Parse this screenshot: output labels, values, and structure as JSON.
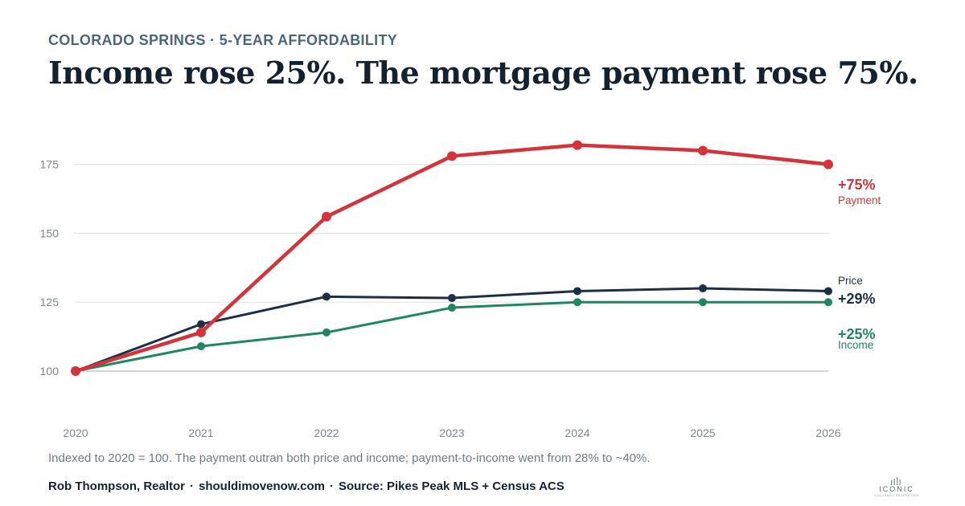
{
  "eyebrow": "COLORADO SPRINGS · 5-YEAR AFFORDABILITY",
  "headline": "Income rose 25%. The mortgage payment rose 75%.",
  "footnote": "Indexed to 2020 = 100. The payment outran both price and income; payment-to-income went from 28% to ~40%.",
  "footer": {
    "author": "Rob Thompson, Realtor",
    "site": "shouldimovenow.com",
    "source": "Source: Pikes Peak MLS + Census ACS"
  },
  "logo": {
    "word": "ICONIC",
    "tagline": "COLORADO PROPERTIES"
  },
  "chart_data": {
    "type": "line",
    "x": [
      2020,
      2021,
      2022,
      2023,
      2024,
      2025,
      2026
    ],
    "yticks": [
      100,
      125,
      150,
      175
    ],
    "ylim": [
      93,
      188
    ],
    "grid": "horizontal",
    "series": [
      {
        "name": "Income",
        "end_label": "+25%",
        "color": "#1e8660",
        "values": [
          100,
          109,
          114,
          123,
          125,
          125,
          125
        ]
      },
      {
        "name": "Price",
        "end_label": "+29%",
        "color": "#1c2f44",
        "values": [
          100,
          117,
          127,
          126.5,
          129,
          130,
          129
        ]
      },
      {
        "name": "Payment",
        "end_label": "+75%",
        "color": "#d1343a",
        "values": [
          100,
          114,
          156,
          178,
          182,
          180,
          175
        ]
      }
    ]
  }
}
